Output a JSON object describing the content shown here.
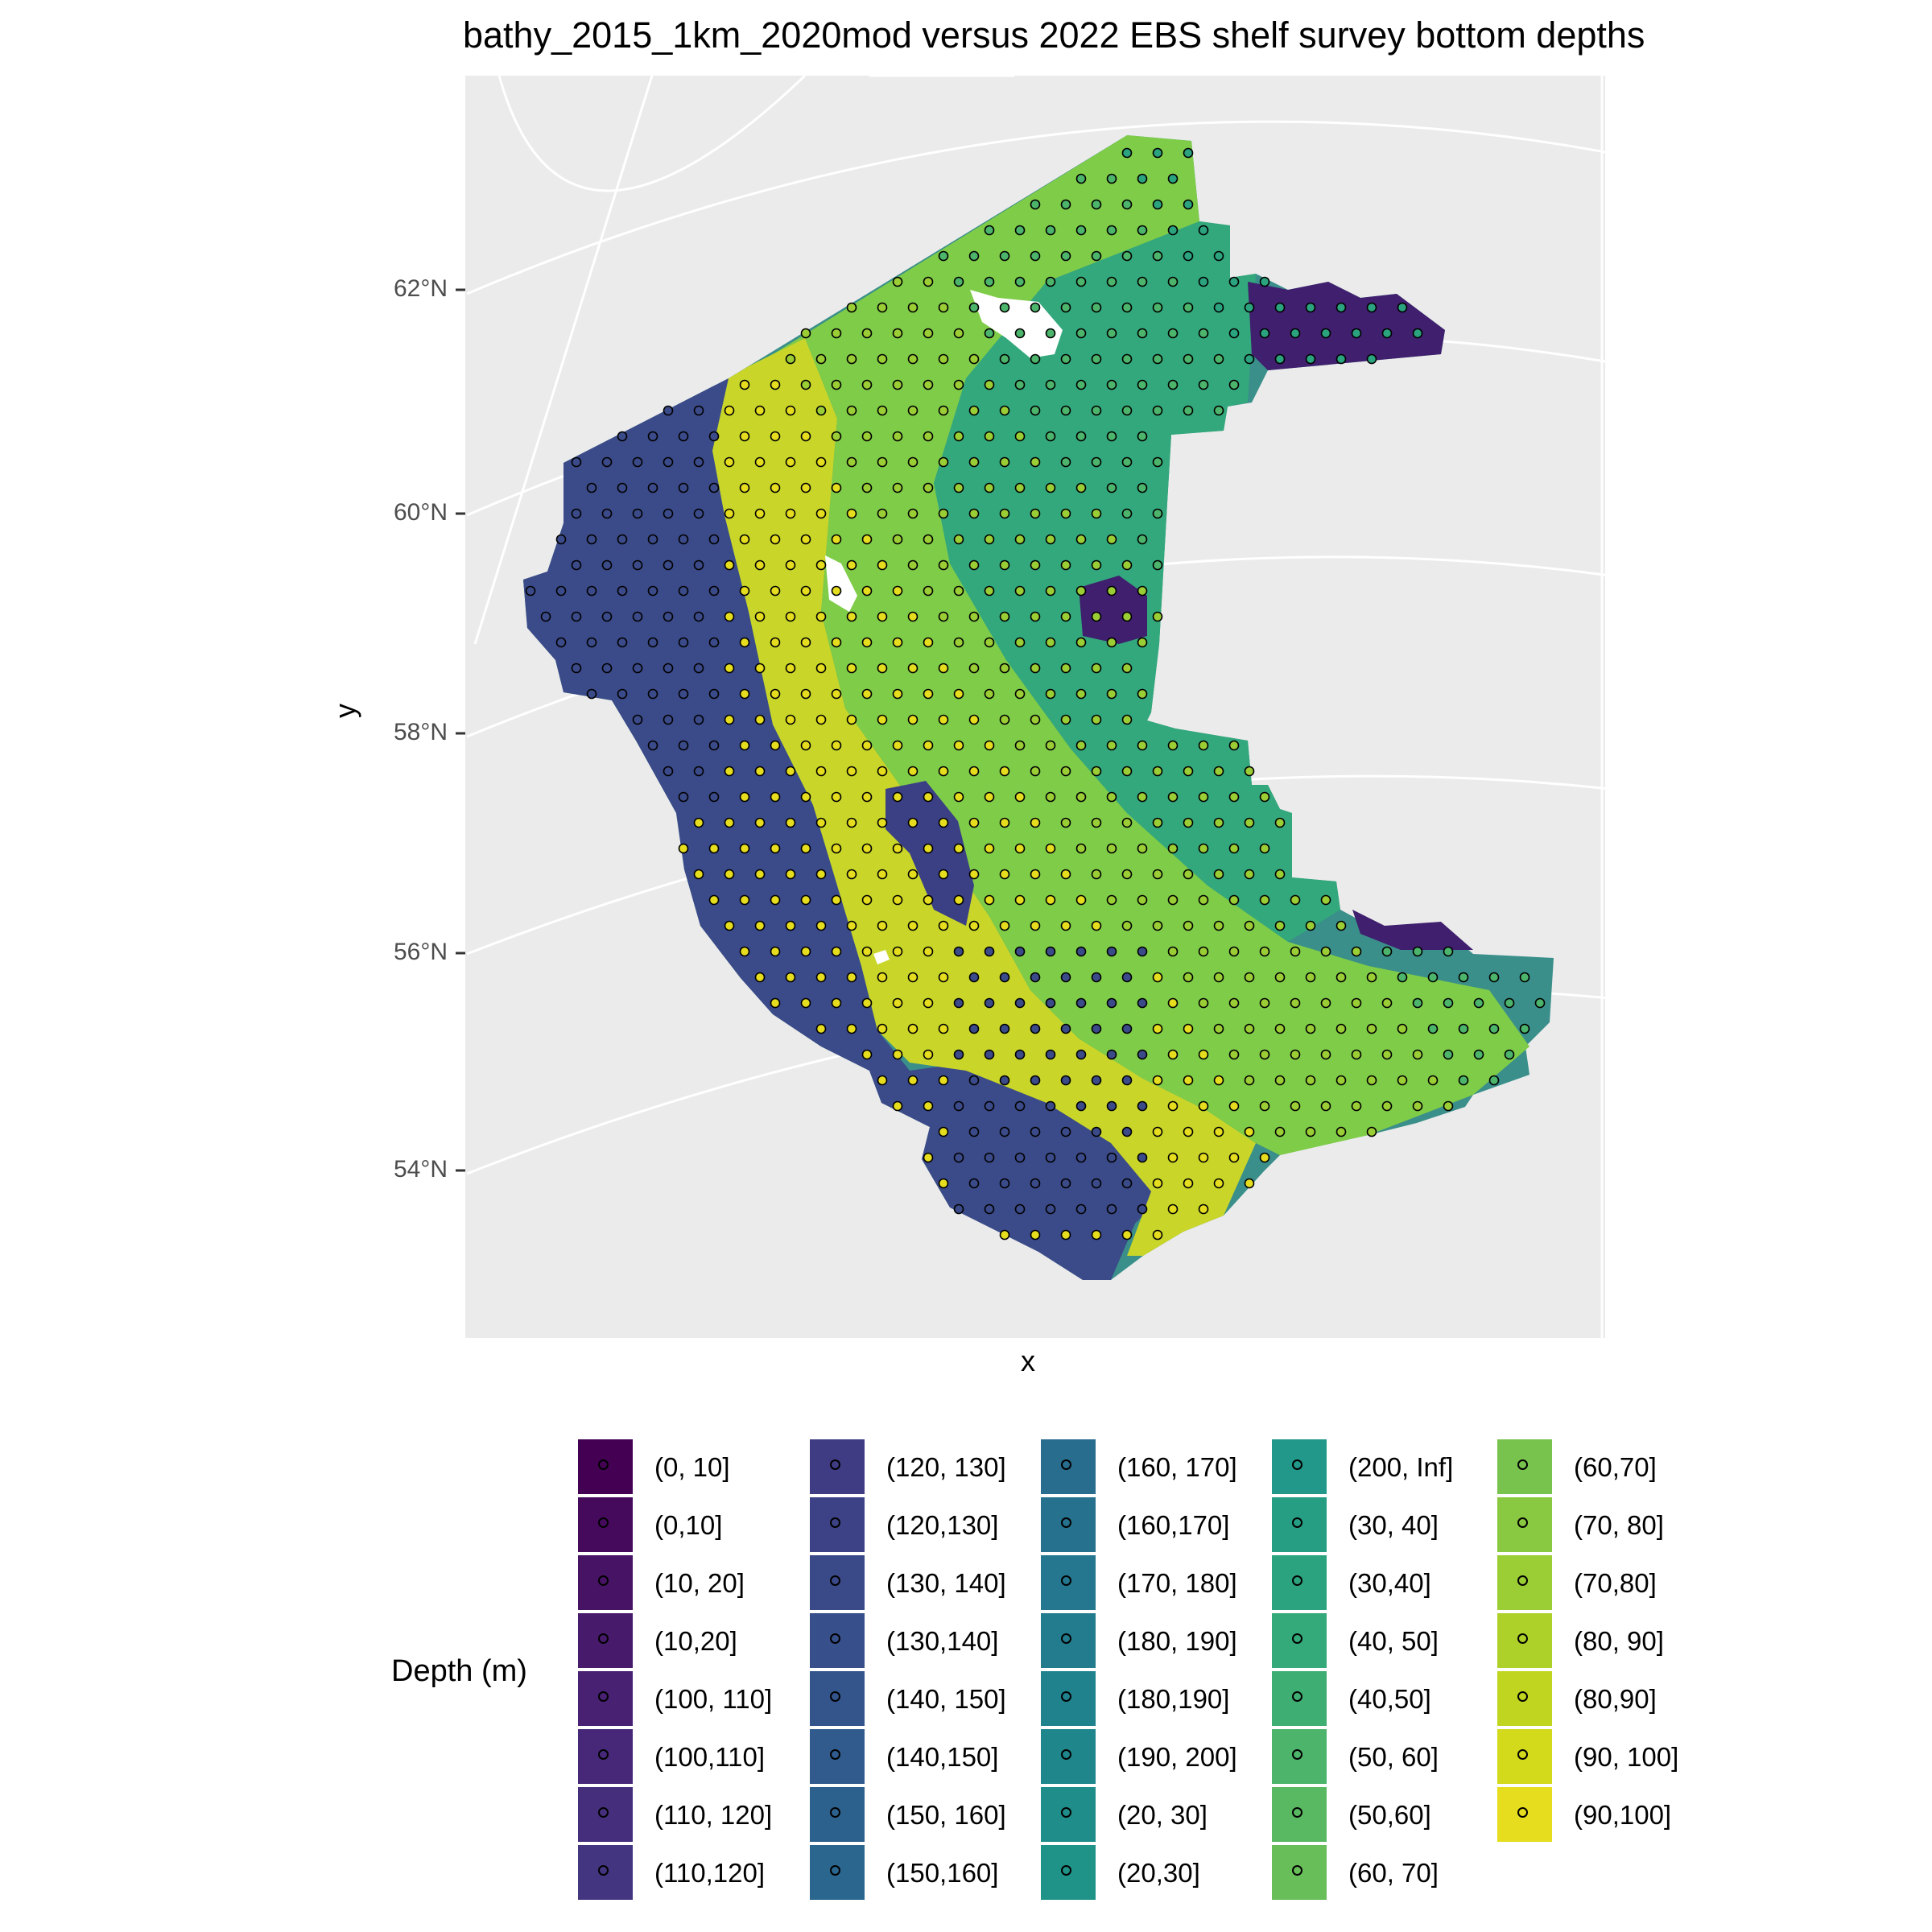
{
  "title": "bathy_2015_1km_2020mod versus 2022 EBS shelf survey bottom depths",
  "axes": {
    "x_title": "x",
    "y_title": "y",
    "y_ticks": [
      "62°N",
      "60°N",
      "58°N",
      "56°N",
      "54°N"
    ]
  },
  "colors": {
    "panel_bg": "#ebebeb",
    "grid": "#ffffff",
    "deep": "#3b2f7a",
    "mid": "#2a9a88",
    "shallow": "#7fcf4a",
    "shallowest": "#f0e51c"
  },
  "legend": {
    "title": "Depth (m)",
    "columns": [
      [
        {
          "label": "(0, 10]",
          "color": "#440154"
        },
        {
          "label": "(0,10]",
          "color": "#460a5d"
        },
        {
          "label": "(10, 20]",
          "color": "#471365"
        },
        {
          "label": "(10,20]",
          "color": "#481a6c"
        },
        {
          "label": "(100, 110]",
          "color": "#482173"
        },
        {
          "label": "(100,110]",
          "color": "#472878"
        },
        {
          "label": "(110, 120]",
          "color": "#452f7d"
        },
        {
          "label": "(110,120]",
          "color": "#433580"
        }
      ],
      [
        {
          "label": "(120, 130]",
          "color": "#403c84"
        },
        {
          "label": "(120,130]",
          "color": "#3d4286"
        },
        {
          "label": "(130, 140]",
          "color": "#3a4988"
        },
        {
          "label": "(130,140]",
          "color": "#374f8a"
        },
        {
          "label": "(140, 150]",
          "color": "#33558b"
        },
        {
          "label": "(140,150]",
          "color": "#305b8c"
        },
        {
          "label": "(150, 160]",
          "color": "#2d618d"
        },
        {
          "label": "(150,160]",
          "color": "#2a668e"
        }
      ],
      [
        {
          "label": "(160, 170]",
          "color": "#286c8e"
        },
        {
          "label": "(160,170]",
          "color": "#26718e"
        },
        {
          "label": "(170, 180]",
          "color": "#24778e"
        },
        {
          "label": "(180, 190]",
          "color": "#227c8e"
        },
        {
          "label": "(180,190]",
          "color": "#20828d"
        },
        {
          "label": "(190, 200]",
          "color": "#1f878c"
        },
        {
          "label": "(20, 30]",
          "color": "#1f8d8a"
        },
        {
          "label": "(20,30]",
          "color": "#1f9388"
        }
      ],
      [
        {
          "label": "(200, Inf]",
          "color": "#21988a"
        },
        {
          "label": "(30, 40]",
          "color": "#259e84"
        },
        {
          "label": "(30,40]",
          "color": "#2ba37f"
        },
        {
          "label": "(40, 50]",
          "color": "#34a979"
        },
        {
          "label": "(40,50]",
          "color": "#3fae73"
        },
        {
          "label": "(50, 60]",
          "color": "#4cb46b"
        },
        {
          "label": "(50,60]",
          "color": "#59b962"
        },
        {
          "label": "(60, 70]",
          "color": "#68be58"
        }
      ],
      [
        {
          "label": "(60,70]",
          "color": "#78c34d"
        },
        {
          "label": "(70, 80]",
          "color": "#89c841"
        },
        {
          "label": "(70,80]",
          "color": "#9bcd35"
        },
        {
          "label": "(80, 90]",
          "color": "#add129"
        },
        {
          "label": "(80,90]",
          "color": "#c0d51f"
        },
        {
          "label": "(90, 100]",
          "color": "#d3d91b"
        },
        {
          "label": "(90,100]",
          "color": "#e5dd1e"
        }
      ]
    ]
  }
}
